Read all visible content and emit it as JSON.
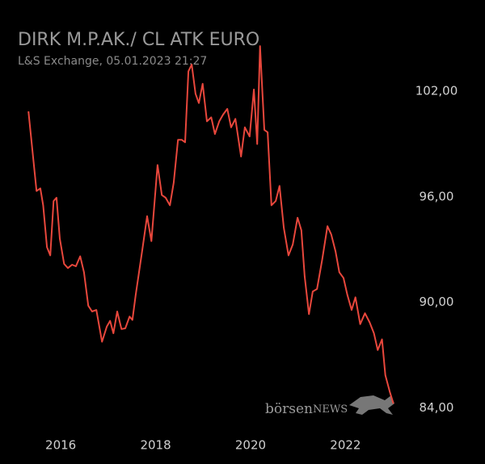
{
  "chart_data": {
    "type": "line",
    "title": "DIRK M.P.AK./ CL ATK EURO",
    "subtitle": "L&S Exchange, 05.01.2023 21:27",
    "watermark": {
      "brand": "börsen",
      "suffix": "NEWS"
    },
    "xlim": [
      2014.72,
      2024.94
    ],
    "xticks": [
      2016,
      2018,
      2020,
      2022
    ],
    "ylim": [
      80.81,
      107.19
    ],
    "yticks": [
      {
        "value": 84,
        "label": "84,00"
      },
      {
        "value": 90,
        "label": "90,00"
      },
      {
        "value": 96,
        "label": "96,00"
      },
      {
        "value": 102,
        "label": "102,00"
      }
    ],
    "grid": false,
    "series": [
      {
        "color": "#e8473c",
        "x": [
          2015.32,
          2015.49,
          2015.57,
          2015.63,
          2015.71,
          2015.78,
          2015.85,
          2015.91,
          2015.98,
          2016.07,
          2016.15,
          2016.24,
          2016.32,
          2016.41,
          2016.49,
          2016.58,
          2016.66,
          2016.75,
          2016.87,
          2016.97,
          2017.04,
          2017.11,
          2017.19,
          2017.28,
          2017.36,
          2017.45,
          2017.51,
          2017.58,
          2017.72,
          2017.82,
          2017.91,
          2018.04,
          2018.13,
          2018.21,
          2018.3,
          2018.38,
          2018.47,
          2018.55,
          2018.62,
          2018.69,
          2018.76,
          2018.84,
          2018.91,
          2018.99,
          2019.08,
          2019.17,
          2019.25,
          2019.34,
          2019.42,
          2019.51,
          2019.59,
          2019.68,
          2019.8,
          2019.88,
          2019.98,
          2020.07,
          2020.14,
          2020.2,
          2020.29,
          2020.36,
          2020.44,
          2020.53,
          2020.61,
          2020.7,
          2020.8,
          2020.89,
          2020.99,
          2021.07,
          2021.14,
          2021.23,
          2021.31,
          2021.4,
          2021.51,
          2021.62,
          2021.7,
          2021.79,
          2021.87,
          2021.96,
          2022.04,
          2022.13,
          2022.21,
          2022.31,
          2022.41,
          2022.51,
          2022.6,
          2022.68,
          2022.77,
          2022.84,
          2022.93,
          2023.01
        ],
        "values": [
          100.86,
          96.33,
          96.48,
          95.52,
          93.14,
          92.67,
          95.76,
          95.95,
          93.62,
          92.19,
          91.95,
          92.14,
          92.05,
          92.62,
          91.71,
          89.81,
          89.48,
          89.57,
          87.76,
          88.62,
          88.95,
          88.24,
          89.48,
          88.48,
          88.52,
          89.19,
          89.0,
          90.43,
          93.0,
          94.9,
          93.48,
          97.81,
          96.1,
          95.95,
          95.52,
          96.81,
          99.24,
          99.24,
          99.1,
          103.14,
          103.52,
          101.86,
          101.33,
          102.43,
          100.29,
          100.52,
          99.57,
          100.29,
          100.67,
          101.0,
          99.95,
          100.43,
          98.29,
          99.95,
          99.43,
          102.1,
          99.0,
          104.57,
          99.81,
          99.67,
          95.52,
          95.76,
          96.62,
          94.24,
          92.67,
          93.29,
          94.81,
          94.1,
          91.48,
          89.33,
          90.62,
          90.76,
          92.43,
          94.33,
          93.86,
          92.9,
          91.71,
          91.38,
          90.43,
          89.57,
          90.29,
          88.76,
          89.38,
          88.86,
          88.24,
          87.29,
          87.9,
          85.86,
          84.95,
          84.24
        ]
      }
    ]
  }
}
